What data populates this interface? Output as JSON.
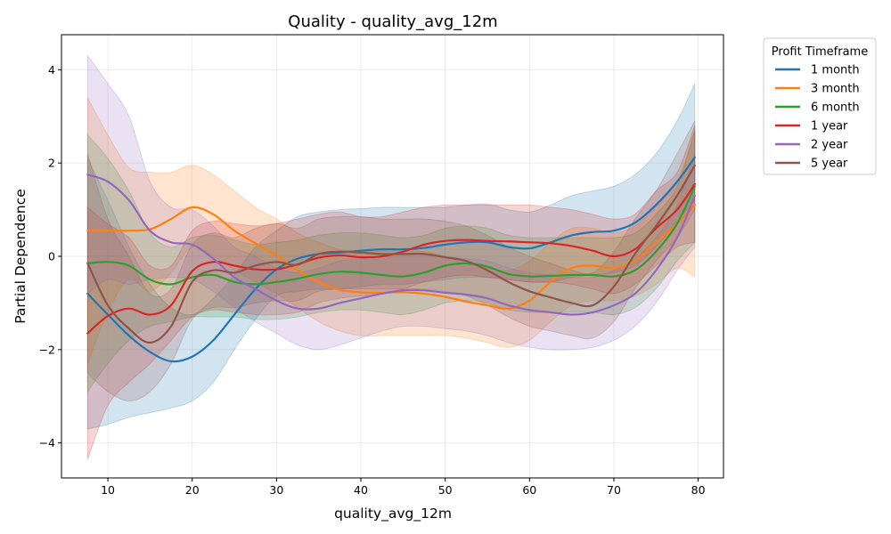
{
  "chart_data": {
    "type": "line",
    "title": "Quality - quality_avg_12m",
    "xlabel": "quality_avg_12m",
    "ylabel": "Partial Dependence",
    "xlim": [
      4.5,
      83.0
    ],
    "ylim": [
      -4.75,
      4.75
    ],
    "xticks": [
      10,
      20,
      30,
      40,
      50,
      60,
      70,
      80
    ],
    "yticks": [
      -4,
      -2,
      0,
      2,
      4
    ],
    "xtick_labels": [
      "10",
      "20",
      "30",
      "40",
      "50",
      "60",
      "70",
      "80"
    ],
    "ytick_labels": [
      "−4",
      "−2",
      "0",
      "2",
      "4"
    ],
    "grid": true,
    "legend": {
      "title": "Profit Timeframe",
      "placement": "outside-right"
    },
    "shaded_band": "confidence interval",
    "x": [
      7.6,
      10,
      12.5,
      15,
      17.5,
      20,
      22.5,
      25,
      27.5,
      30,
      32.5,
      35,
      37.5,
      40,
      42.5,
      45,
      47.5,
      50,
      52.5,
      55,
      57.5,
      60,
      62.5,
      65,
      67.5,
      70,
      72.5,
      75,
      77.5,
      79.6
    ],
    "series": [
      {
        "name": "1 month",
        "color": "#1f77b4",
        "values": [
          -0.8,
          -1.25,
          -1.7,
          -2.05,
          -2.25,
          -2.15,
          -1.8,
          -1.25,
          -0.7,
          -0.28,
          -0.05,
          0.05,
          0.08,
          0.12,
          0.15,
          0.15,
          0.18,
          0.25,
          0.3,
          0.3,
          0.2,
          0.17,
          0.3,
          0.45,
          0.52,
          0.55,
          0.72,
          1.1,
          1.6,
          2.12
        ],
        "lower": [
          -3.7,
          -3.6,
          -3.45,
          -3.35,
          -3.25,
          -3.1,
          -2.7,
          -2.0,
          -1.35,
          -0.85,
          -0.75,
          -0.7,
          -0.7,
          -0.65,
          -0.6,
          -0.6,
          -0.55,
          -0.5,
          -0.45,
          -0.45,
          -0.5,
          -0.55,
          -0.55,
          -0.45,
          -0.4,
          -0.35,
          -0.2,
          0.2,
          0.75,
          1.2
        ],
        "upper": [
          2.1,
          1.2,
          0.2,
          -0.6,
          -1.1,
          -1.25,
          -0.9,
          -0.4,
          0.2,
          0.55,
          0.85,
          0.95,
          1.0,
          1.02,
          1.05,
          1.05,
          1.05,
          1.05,
          1.1,
          1.12,
          1.0,
          0.95,
          1.1,
          1.3,
          1.4,
          1.5,
          1.75,
          2.2,
          2.9,
          3.7
        ]
      },
      {
        "name": "3 month",
        "color": "#ff7f0e",
        "values": [
          0.55,
          0.55,
          0.55,
          0.58,
          0.8,
          1.05,
          0.9,
          0.55,
          0.28,
          0.02,
          -0.3,
          -0.55,
          -0.72,
          -0.77,
          -0.78,
          -0.77,
          -0.8,
          -0.87,
          -0.97,
          -1.05,
          -1.12,
          -0.95,
          -0.55,
          -0.25,
          -0.2,
          -0.25,
          -0.1,
          0.3,
          0.7,
          1.1
        ],
        "lower": [
          -2.3,
          -1.2,
          -0.5,
          -0.75,
          -0.35,
          0.2,
          0.0,
          -0.3,
          -0.55,
          -0.8,
          -1.1,
          -1.4,
          -1.6,
          -1.7,
          -1.7,
          -1.7,
          -1.7,
          -1.7,
          -1.75,
          -1.85,
          -1.95,
          -1.8,
          -1.4,
          -1.05,
          -0.95,
          -0.95,
          -0.85,
          -0.6,
          -0.25,
          -0.45
        ],
        "upper": [
          3.4,
          2.6,
          1.9,
          1.8,
          1.8,
          1.95,
          1.75,
          1.4,
          1.05,
          0.8,
          0.5,
          0.3,
          0.15,
          0.1,
          0.12,
          0.15,
          0.1,
          0.0,
          -0.15,
          -0.25,
          -0.3,
          -0.1,
          0.3,
          0.6,
          0.6,
          0.5,
          0.65,
          1.1,
          1.6,
          2.7
        ]
      },
      {
        "name": "6 month",
        "color": "#2ca02c",
        "values": [
          -0.15,
          -0.12,
          -0.2,
          -0.5,
          -0.6,
          -0.45,
          -0.4,
          -0.55,
          -0.6,
          -0.55,
          -0.48,
          -0.38,
          -0.33,
          -0.35,
          -0.4,
          -0.43,
          -0.35,
          -0.2,
          -0.15,
          -0.22,
          -0.38,
          -0.43,
          -0.42,
          -0.4,
          -0.4,
          -0.43,
          -0.3,
          0.1,
          0.7,
          1.5
        ],
        "lower": [
          -2.9,
          -2.3,
          -1.8,
          -1.5,
          -1.4,
          -1.3,
          -1.3,
          -1.3,
          -1.35,
          -1.35,
          -1.3,
          -1.2,
          -1.15,
          -1.15,
          -1.2,
          -1.25,
          -1.15,
          -1.0,
          -0.95,
          -1.0,
          -1.15,
          -1.2,
          -1.2,
          -1.2,
          -1.2,
          -1.25,
          -1.1,
          -0.7,
          -0.1,
          0.3
        ],
        "upper": [
          2.6,
          2.1,
          1.4,
          0.5,
          0.2,
          0.4,
          0.45,
          0.35,
          0.25,
          0.3,
          0.35,
          0.45,
          0.5,
          0.5,
          0.45,
          0.4,
          0.45,
          0.6,
          0.65,
          0.6,
          0.45,
          0.4,
          0.4,
          0.4,
          0.4,
          0.4,
          0.5,
          0.9,
          1.5,
          2.7
        ]
      },
      {
        "name": "1 year",
        "color": "#d62728",
        "values": [
          -1.65,
          -1.28,
          -1.12,
          -1.25,
          -1.05,
          -0.32,
          -0.12,
          -0.2,
          -0.28,
          -0.28,
          -0.17,
          -0.03,
          0.02,
          -0.02,
          0.0,
          0.1,
          0.25,
          0.33,
          0.35,
          0.33,
          0.32,
          0.3,
          0.28,
          0.22,
          0.12,
          0.0,
          0.15,
          0.6,
          1.0,
          1.55
        ],
        "lower": [
          -4.35,
          -3.2,
          -2.7,
          -2.3,
          -1.8,
          -1.3,
          -1.15,
          -1.2,
          -1.25,
          -1.25,
          -1.2,
          -1.0,
          -0.9,
          -0.85,
          -0.8,
          -0.7,
          -0.55,
          -0.45,
          -0.4,
          -0.45,
          -0.5,
          -0.55,
          -0.55,
          -0.6,
          -0.7,
          -0.8,
          -0.6,
          -0.2,
          0.2,
          0.3
        ],
        "upper": [
          1.05,
          0.7,
          0.4,
          -0.2,
          -0.2,
          0.55,
          0.75,
          0.7,
          0.65,
          0.7,
          0.8,
          0.9,
          0.95,
          0.85,
          0.85,
          0.95,
          1.05,
          1.1,
          1.1,
          1.1,
          1.1,
          1.1,
          1.05,
          1.0,
          0.9,
          0.8,
          0.9,
          1.4,
          1.8,
          2.8
        ]
      },
      {
        "name": "2 year",
        "color": "#9467bd",
        "values": [
          1.75,
          1.6,
          1.2,
          0.55,
          0.3,
          0.25,
          -0.05,
          -0.45,
          -0.7,
          -0.95,
          -1.12,
          -1.12,
          -1.0,
          -0.9,
          -0.8,
          -0.73,
          -0.73,
          -0.78,
          -0.82,
          -0.9,
          -1.05,
          -1.15,
          -1.2,
          -1.25,
          -1.2,
          -1.05,
          -0.8,
          -0.3,
          0.4,
          1.3
        ],
        "lower": [
          -0.8,
          -0.5,
          -0.6,
          -0.5,
          -0.45,
          -0.5,
          -0.75,
          -1.1,
          -1.4,
          -1.65,
          -1.9,
          -2.0,
          -1.9,
          -1.75,
          -1.6,
          -1.5,
          -1.5,
          -1.55,
          -1.6,
          -1.7,
          -1.85,
          -1.95,
          -2.0,
          -2.0,
          -1.95,
          -1.8,
          -1.5,
          -1.0,
          -0.3,
          0.2
        ],
        "upper": [
          4.3,
          3.7,
          3.0,
          1.6,
          1.05,
          1.0,
          0.65,
          0.2,
          0.0,
          -0.25,
          -0.35,
          -0.25,
          -0.1,
          -0.05,
          0.0,
          0.05,
          0.05,
          0.0,
          -0.05,
          -0.1,
          -0.25,
          -0.35,
          -0.4,
          -0.45,
          -0.45,
          -0.3,
          -0.05,
          0.4,
          1.1,
          2.2
        ]
      },
      {
        "name": "5 year",
        "color": "#8c564b",
        "values": [
          -0.15,
          -1.05,
          -1.55,
          -1.85,
          -1.5,
          -0.55,
          -0.3,
          -0.35,
          -0.2,
          -0.12,
          -0.18,
          0.05,
          0.1,
          0.08,
          0.05,
          0.05,
          0.05,
          -0.02,
          -0.1,
          -0.3,
          -0.55,
          -0.75,
          -0.88,
          -1.0,
          -1.05,
          -0.65,
          0.05,
          0.65,
          1.3,
          1.95
        ],
        "lower": [
          -2.5,
          -2.9,
          -3.1,
          -2.9,
          -2.3,
          -1.35,
          -1.1,
          -1.1,
          -1.0,
          -0.95,
          -0.95,
          -0.75,
          -0.7,
          -0.7,
          -0.7,
          -0.7,
          -0.7,
          -0.75,
          -0.85,
          -1.05,
          -1.3,
          -1.5,
          -1.6,
          -1.7,
          -1.75,
          -1.4,
          -0.7,
          -0.1,
          0.4,
          1.0
        ],
        "upper": [
          2.2,
          0.8,
          0.0,
          -0.8,
          -0.7,
          0.25,
          0.5,
          0.4,
          0.6,
          0.7,
          0.6,
          0.8,
          0.85,
          0.85,
          0.8,
          0.8,
          0.8,
          0.75,
          0.65,
          0.45,
          0.2,
          0.0,
          -0.15,
          -0.3,
          -0.35,
          0.1,
          0.8,
          1.4,
          2.2,
          2.9
        ]
      }
    ]
  }
}
